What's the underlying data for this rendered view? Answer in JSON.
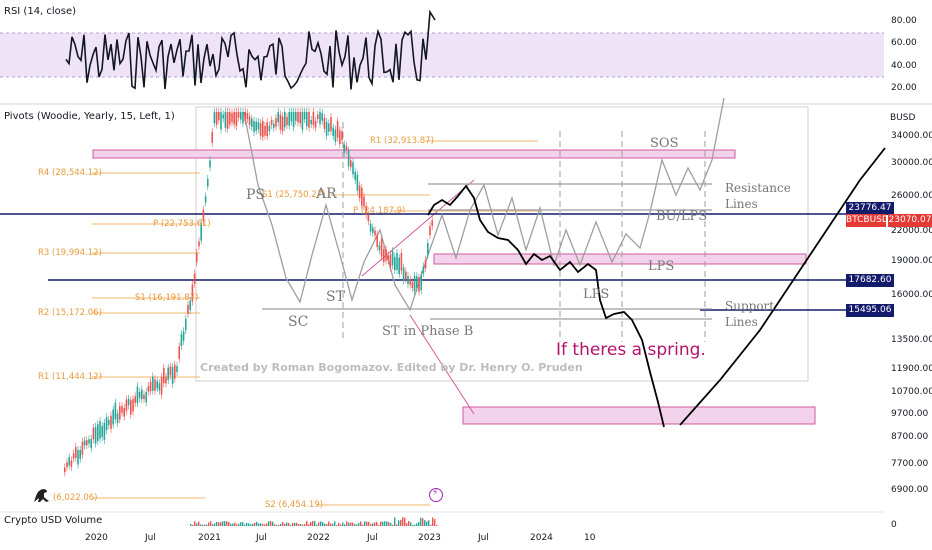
{
  "rsi": {
    "title": "RSI (14, close)",
    "levels": [
      "80.00",
      "60.00",
      "40.00",
      "20.00"
    ]
  },
  "pivots": {
    "title": "Pivots (Woodie, Yearly, 15, Left, 1)"
  },
  "volume": {
    "title": "Crypto USD Volume"
  },
  "price_axis": {
    "unit": "BUSD",
    "ticks": [
      "34000.00",
      "30000.00",
      "26000.00",
      "22000.00",
      "19000.00",
      "16000.00",
      "13500.00",
      "11900.00",
      "10700.00",
      "9700.00",
      "8700.00",
      "7700.00",
      "6900.00"
    ],
    "volume_tick": "0"
  },
  "time_axis": {
    "ticks": [
      "2020",
      "Jul",
      "2021",
      "Jul",
      "2022",
      "Jul",
      "2023",
      "Jul",
      "2024",
      "10"
    ]
  },
  "price_tags": [
    {
      "label": "23776.47",
      "color": "#131b6b"
    },
    {
      "label": "BTCBUSD",
      "color": "#e53935"
    },
    {
      "label": "23070.07",
      "color": "#e53935"
    },
    {
      "label": "17682.60",
      "color": "#131b6b"
    },
    {
      "label": "15495.06",
      "color": "#131b6b"
    }
  ],
  "pivot_labels": {
    "r4": "R4 (28,544.12)",
    "r3": "R3 (19,994.12)",
    "r2": "R2 (15,172.06)",
    "r1_low": "R1 (11,444.12)",
    "s1_low": "(6,022.06)",
    "p": "P (22,753.61)",
    "s1": "S1 (16,191.87)",
    "s1_top": "S1 (25,750.27)",
    "r1_top": "R1 (32,913.87)",
    "p_top": "P (24,187.9)",
    "s2": "S2 (6,454.19)"
  },
  "wyckoff": {
    "ps": "PS",
    "ar": "AR",
    "st": "ST",
    "sc": "SC",
    "st_phase_b": "ST in Phase B",
    "sos": "SOS",
    "bu_lps": "BU/LPS",
    "lps": "LPS",
    "lps2": "LPS",
    "resistance": "Resistance",
    "resistance2": "Lines",
    "support": "Support",
    "support2": "Lines"
  },
  "annotations": {
    "credit": "Created by Roman Bogomazov. Edited by Dr. Henry O. Pruden",
    "spring": "If theres a spring."
  },
  "colors": {
    "rsi_band": "#efe3f7",
    "zone_fill": "#f3d3ec",
    "zone_stroke": "#d25a9e",
    "navy_line": "#131b6b",
    "pivot_line": "#f2b56b",
    "candle_up": "#26a69a",
    "candle_down": "#ef5350",
    "sketch": "#9e9e9e",
    "accent_text": "#b3136b"
  },
  "icons": {
    "zap": "lightning-icon",
    "logo": "dinosaur-logo-icon"
  }
}
